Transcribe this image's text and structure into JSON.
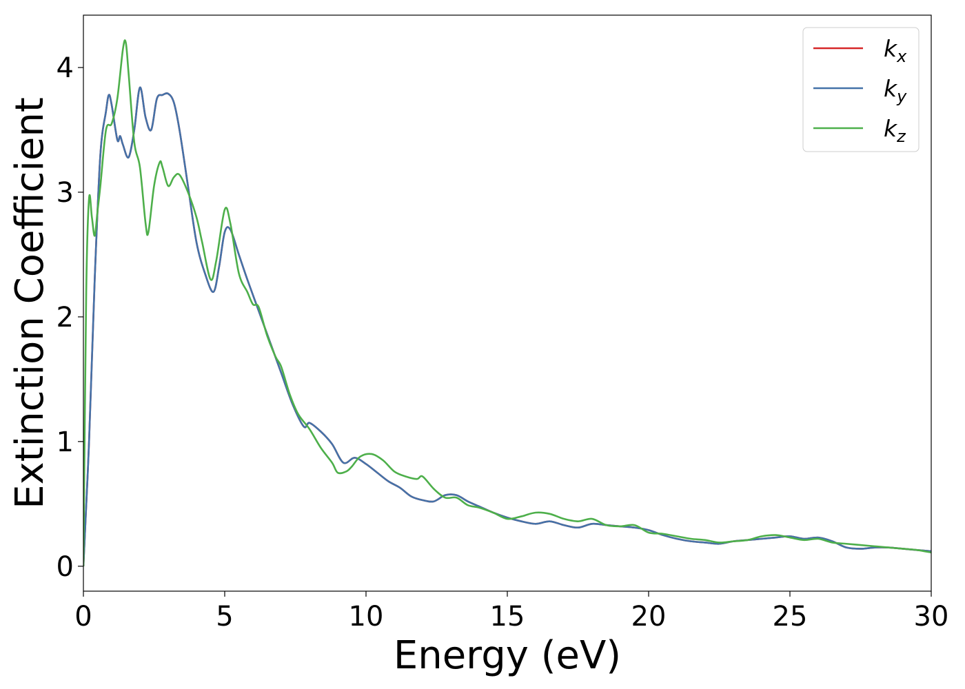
{
  "chart_data": {
    "type": "line",
    "title": "",
    "xlabel": "Energy (eV)",
    "ylabel": "Extinction Coefficient",
    "xlim": [
      0,
      30
    ],
    "ylim": [
      -0.2,
      4.42
    ],
    "xticks": [
      0,
      5,
      10,
      15,
      20,
      25,
      30
    ],
    "xtick_labels": [
      "0",
      "5",
      "10",
      "15",
      "20",
      "25",
      "30"
    ],
    "yticks": [
      0,
      1,
      2,
      3,
      4
    ],
    "ytick_labels": [
      "0",
      "1",
      "2",
      "3",
      "4"
    ],
    "grid": false,
    "legend_position": "top-right",
    "series": [
      {
        "name": "k",
        "subscript": "x",
        "color": "#d62728",
        "x": [
          0,
          0.2,
          0.4,
          0.6,
          0.8,
          0.9,
          1.0,
          1.2,
          1.3,
          1.4,
          1.6,
          1.8,
          2.0,
          2.2,
          2.4,
          2.6,
          2.8,
          3.0,
          3.2,
          3.4,
          3.7,
          4.0,
          4.3,
          4.6,
          4.8,
          5.0,
          5.2,
          5.5,
          5.8,
          6.2,
          6.6,
          7.0,
          7.4,
          7.8,
          8.0,
          8.4,
          8.8,
          9.2,
          9.6,
          10.0,
          10.4,
          10.8,
          11.2,
          11.6,
          12.0,
          12.4,
          12.8,
          13.2,
          13.6,
          14.0,
          14.5,
          15.0,
          15.5,
          16.0,
          16.5,
          17.0,
          17.5,
          18.0,
          18.5,
          19.0,
          19.5,
          20.0,
          20.5,
          21.0,
          21.5,
          22.0,
          22.5,
          23.0,
          23.5,
          24.0,
          24.5,
          25.0,
          25.5,
          26.0,
          26.5,
          27.0,
          27.5,
          28.0,
          28.5,
          29.0,
          29.5,
          30.0
        ],
        "y": [
          0,
          1.0,
          2.3,
          3.3,
          3.65,
          3.78,
          3.7,
          3.42,
          3.45,
          3.38,
          3.28,
          3.5,
          3.84,
          3.6,
          3.5,
          3.75,
          3.78,
          3.79,
          3.72,
          3.5,
          3.05,
          2.6,
          2.35,
          2.2,
          2.4,
          2.68,
          2.7,
          2.5,
          2.3,
          2.05,
          1.8,
          1.55,
          1.3,
          1.12,
          1.15,
          1.08,
          0.98,
          0.83,
          0.87,
          0.82,
          0.75,
          0.68,
          0.63,
          0.56,
          0.53,
          0.52,
          0.57,
          0.57,
          0.52,
          0.48,
          0.43,
          0.39,
          0.36,
          0.34,
          0.36,
          0.33,
          0.31,
          0.34,
          0.33,
          0.32,
          0.31,
          0.29,
          0.25,
          0.22,
          0.2,
          0.19,
          0.18,
          0.2,
          0.21,
          0.22,
          0.23,
          0.24,
          0.22,
          0.23,
          0.2,
          0.15,
          0.14,
          0.15,
          0.15,
          0.14,
          0.13,
          0.12
        ]
      },
      {
        "name": "k",
        "subscript": "y",
        "color": "#4472a8",
        "x": [
          0,
          0.2,
          0.4,
          0.6,
          0.8,
          0.9,
          1.0,
          1.2,
          1.3,
          1.4,
          1.6,
          1.8,
          2.0,
          2.2,
          2.4,
          2.6,
          2.8,
          3.0,
          3.2,
          3.4,
          3.7,
          4.0,
          4.3,
          4.6,
          4.8,
          5.0,
          5.2,
          5.5,
          5.8,
          6.2,
          6.6,
          7.0,
          7.4,
          7.8,
          8.0,
          8.4,
          8.8,
          9.2,
          9.6,
          10.0,
          10.4,
          10.8,
          11.2,
          11.6,
          12.0,
          12.4,
          12.8,
          13.2,
          13.6,
          14.0,
          14.5,
          15.0,
          15.5,
          16.0,
          16.5,
          17.0,
          17.5,
          18.0,
          18.5,
          19.0,
          19.5,
          20.0,
          20.5,
          21.0,
          21.5,
          22.0,
          22.5,
          23.0,
          23.5,
          24.0,
          24.5,
          25.0,
          25.5,
          26.0,
          26.5,
          27.0,
          27.5,
          28.0,
          28.5,
          29.0,
          29.5,
          30.0
        ],
        "y": [
          0,
          1.0,
          2.3,
          3.3,
          3.65,
          3.78,
          3.7,
          3.42,
          3.45,
          3.38,
          3.28,
          3.5,
          3.84,
          3.6,
          3.5,
          3.75,
          3.78,
          3.79,
          3.72,
          3.5,
          3.05,
          2.6,
          2.35,
          2.2,
          2.4,
          2.68,
          2.7,
          2.5,
          2.3,
          2.05,
          1.8,
          1.55,
          1.3,
          1.12,
          1.15,
          1.08,
          0.98,
          0.83,
          0.87,
          0.82,
          0.75,
          0.68,
          0.63,
          0.56,
          0.53,
          0.52,
          0.57,
          0.57,
          0.52,
          0.48,
          0.43,
          0.39,
          0.36,
          0.34,
          0.36,
          0.33,
          0.31,
          0.34,
          0.33,
          0.32,
          0.31,
          0.29,
          0.25,
          0.22,
          0.2,
          0.19,
          0.18,
          0.2,
          0.21,
          0.22,
          0.23,
          0.24,
          0.22,
          0.23,
          0.2,
          0.15,
          0.14,
          0.15,
          0.15,
          0.14,
          0.13,
          0.12
        ]
      },
      {
        "name": "k",
        "subscript": "z",
        "color": "#4daf4a",
        "x": [
          0,
          0.1,
          0.2,
          0.3,
          0.4,
          0.5,
          0.6,
          0.8,
          1.0,
          1.2,
          1.4,
          1.5,
          1.6,
          1.8,
          2.0,
          2.2,
          2.3,
          2.5,
          2.7,
          2.8,
          3.0,
          3.2,
          3.4,
          3.7,
          4.0,
          4.2,
          4.5,
          4.7,
          5.0,
          5.2,
          5.5,
          5.8,
          6.0,
          6.2,
          6.5,
          6.8,
          7.0,
          7.3,
          7.6,
          8.0,
          8.4,
          8.8,
          9.0,
          9.3,
          9.5,
          9.8,
          10.2,
          10.6,
          11.0,
          11.4,
          11.8,
          12.0,
          12.4,
          12.8,
          13.2,
          13.6,
          14.0,
          14.5,
          15.0,
          15.5,
          16.0,
          16.5,
          17.0,
          17.5,
          18.0,
          18.5,
          19.0,
          19.5,
          20.0,
          20.5,
          21.0,
          21.5,
          22.0,
          22.5,
          23.0,
          23.5,
          24.0,
          24.5,
          25.0,
          25.5,
          26.0,
          26.5,
          27.0,
          27.5,
          28.0,
          28.5,
          29.0,
          29.5,
          30.0
        ],
        "y": [
          0,
          2.2,
          2.95,
          2.8,
          2.65,
          2.85,
          3.05,
          3.5,
          3.55,
          3.75,
          4.15,
          4.2,
          3.95,
          3.4,
          3.2,
          2.75,
          2.68,
          3.05,
          3.24,
          3.2,
          3.05,
          3.12,
          3.14,
          3.0,
          2.8,
          2.6,
          2.3,
          2.45,
          2.86,
          2.75,
          2.35,
          2.2,
          2.1,
          2.08,
          1.85,
          1.68,
          1.6,
          1.38,
          1.22,
          1.1,
          0.95,
          0.83,
          0.75,
          0.76,
          0.8,
          0.88,
          0.9,
          0.85,
          0.76,
          0.72,
          0.7,
          0.72,
          0.62,
          0.55,
          0.55,
          0.49,
          0.47,
          0.43,
          0.38,
          0.4,
          0.43,
          0.42,
          0.38,
          0.36,
          0.38,
          0.33,
          0.32,
          0.33,
          0.27,
          0.26,
          0.24,
          0.22,
          0.21,
          0.19,
          0.2,
          0.21,
          0.24,
          0.25,
          0.23,
          0.21,
          0.22,
          0.19,
          0.18,
          0.17,
          0.16,
          0.15,
          0.14,
          0.13,
          0.11
        ]
      }
    ]
  }
}
